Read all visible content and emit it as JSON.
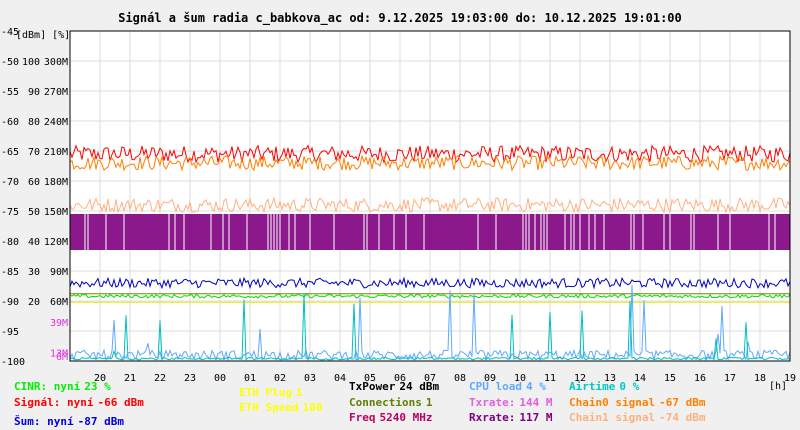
{
  "chart_data": {
    "type": "line",
    "title": "Signál a šum radia c_babkova_ac od: 9.12.2025 19:03:00 do: 10.12.2025 19:01:00",
    "units_label": "[dBm] [%]",
    "x_unit_label": "[h]",
    "x_ticks": [
      "20",
      "21",
      "22",
      "23",
      "00",
      "01",
      "02",
      "03",
      "04",
      "05",
      "06",
      "07",
      "08",
      "09",
      "10",
      "11",
      "12",
      "13",
      "14",
      "15",
      "16",
      "17",
      "18",
      "19"
    ],
    "y_ticks_dbm": [
      "-45",
      "-50",
      "-55",
      "-60",
      "-65",
      "-70",
      "-75",
      "-80",
      "-85",
      "-90",
      "-95",
      "-100"
    ],
    "y_ticks_pct": [
      "100",
      "90",
      "80",
      "70",
      "60",
      "50",
      "40",
      "30",
      "20"
    ],
    "y_ticks_rate": [
      "300M",
      "270M",
      "240M",
      "210M",
      "180M",
      "150M",
      "120M",
      "90M",
      "60M"
    ],
    "y_ticks_extra": [
      {
        "label": "39M",
        "color": "#e030e0",
        "value_dbm": -93.5
      },
      {
        "label": "13M",
        "color": "#e030e0",
        "value_dbm": -98.6
      },
      {
        "label": "6M",
        "color": "#e030e0",
        "value_dbm": -99.2
      }
    ],
    "y_range_dbm": [
      -100,
      -45
    ],
    "grid": true,
    "series": [
      {
        "name": "Signál",
        "color": "#ff0000",
        "level": -65.5,
        "spread": 1.4,
        "kind": "noisy"
      },
      {
        "name": "Chain0 signal",
        "color": "#ff8000",
        "level": -67.0,
        "spread": 1.2,
        "kind": "noisy"
      },
      {
        "name": "Chain1 signal",
        "color": "#ffb080",
        "level": -74.0,
        "spread": 1.2,
        "kind": "noisy"
      },
      {
        "name": "Rxrate",
        "color": "#800080",
        "level": -78.5,
        "spread": 3.0,
        "kind": "band"
      },
      {
        "name": "Šum",
        "color": "#0000c0",
        "level": -87.0,
        "spread": 0.8,
        "kind": "noisy"
      },
      {
        "name": "Connections",
        "color": "#808000",
        "level": -88.8,
        "spread": 0.0,
        "kind": "flat"
      },
      {
        "name": "CINR",
        "color": "#00dd00",
        "level": -89.2,
        "spread": 0.3,
        "kind": "noisy"
      },
      {
        "name": "ETH Speed",
        "color": "#e8e800",
        "level": -90.2,
        "spread": 0.0,
        "kind": "flat"
      },
      {
        "name": "CPU load",
        "color": "#60a8ff",
        "level": -99.0,
        "spread": 0.8,
        "kind": "spiky"
      },
      {
        "name": "Airtime",
        "color": "#00c0c0",
        "level": -99.6,
        "spread": 0.2,
        "kind": "spiky"
      }
    ]
  },
  "legend": [
    {
      "key": "cinr",
      "label": "CINR: nyní",
      "value": "23 %",
      "color": "#00ee00"
    },
    {
      "key": "signal",
      "label": "Signál: nyní",
      "value": "-66 dBm",
      "color": "#ff0000"
    },
    {
      "key": "sum",
      "label": "Šum: nyní",
      "value": "-87 dBm",
      "color": "#0000e0"
    },
    {
      "key": "eth_plug",
      "label": "ETH Plug",
      "value": "1",
      "color": "#ffff00"
    },
    {
      "key": "eth_speed",
      "label": "ETH Speed",
      "value": "100",
      "color": "#ffff00"
    },
    {
      "key": "txpower",
      "label": "TxPower",
      "value": "24 dBm",
      "color": "#000000"
    },
    {
      "key": "connections",
      "label": "Connections",
      "value": "1",
      "color": "#608000"
    },
    {
      "key": "freq",
      "label": "Freq",
      "value": "5240 MHz",
      "color": "#c00060"
    },
    {
      "key": "cpu",
      "label": "CPU load",
      "value": "4 %",
      "color": "#60a8ff"
    },
    {
      "key": "txrate",
      "label": "Txrate:",
      "value": "144 M",
      "color": "#e060e0"
    },
    {
      "key": "rxrate",
      "label": "Rxrate:",
      "value": "117 M",
      "color": "#800080"
    },
    {
      "key": "airtime",
      "label": "Airtime",
      "value": "0 %",
      "color": "#00c8c8"
    },
    {
      "key": "chain0",
      "label": "Chain0 signal",
      "value": "-67 dBm",
      "color": "#ff8000"
    },
    {
      "key": "chain1",
      "label": "Chain1 signal",
      "value": "-74 dBm",
      "color": "#ffb080"
    }
  ]
}
